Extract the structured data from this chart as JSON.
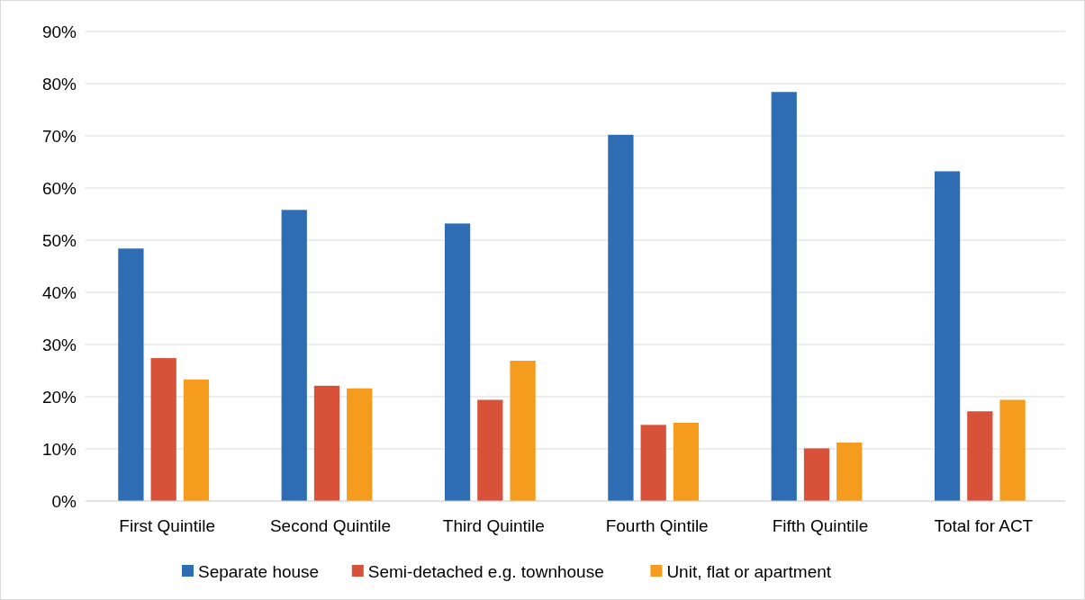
{
  "chart_data": {
    "type": "bar",
    "categories": [
      "First Quintile",
      "Second Quintile",
      "Third Quintile",
      "Fourth Qintile",
      "Fifth Quintile",
      "Total for ACT"
    ],
    "series": [
      {
        "name": "Separate house",
        "color": "#2e6db4",
        "values": [
          48.4,
          55.8,
          53.2,
          70.2,
          78.4,
          63.2
        ]
      },
      {
        "name": "Semi-detached e.g. townhouse",
        "color": "#d8523a",
        "values": [
          27.4,
          22.1,
          19.4,
          14.6,
          10.1,
          17.2
        ]
      },
      {
        "name": "Unit, flat or apartment",
        "color": "#f59b1e",
        "values": [
          23.3,
          21.6,
          26.9,
          15.0,
          11.2,
          19.4
        ]
      }
    ],
    "ylim": [
      0,
      90
    ],
    "yticks": [
      {
        "value": 0,
        "label": "0%"
      },
      {
        "value": 10,
        "label": "10%"
      },
      {
        "value": 20,
        "label": "20%"
      },
      {
        "value": 30,
        "label": "30%"
      },
      {
        "value": 40,
        "label": "40%"
      },
      {
        "value": 50,
        "label": "50%"
      },
      {
        "value": 60,
        "label": "60%"
      },
      {
        "value": 70,
        "label": "70%"
      },
      {
        "value": 80,
        "label": "80%"
      },
      {
        "value": 90,
        "label": "90%"
      }
    ],
    "grid": "y",
    "legend": "bottom"
  }
}
